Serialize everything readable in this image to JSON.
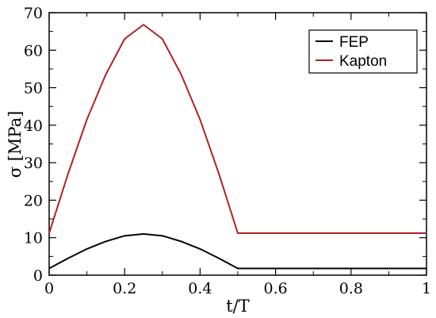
{
  "chart_data": {
    "type": "line",
    "title": "",
    "xlabel": "t/T",
    "ylabel": "σ [MPa]",
    "xlim": [
      0,
      1
    ],
    "ylim": [
      0,
      70
    ],
    "x_ticks": [
      0,
      0.2,
      0.4,
      0.6,
      0.8,
      1
    ],
    "x_tick_labels": [
      "0",
      "0.2",
      "0.4",
      "0.6",
      "0.8",
      "1"
    ],
    "y_ticks": [
      0,
      10,
      20,
      30,
      40,
      50,
      60,
      70
    ],
    "y_tick_labels": [
      "0",
      "10",
      "20",
      "30",
      "40",
      "50",
      "60",
      "70"
    ],
    "grid": false,
    "legend_position": "top-right",
    "series": [
      {
        "name": "FEP",
        "color": "#000000",
        "x": [
          0,
          0.05,
          0.1,
          0.15,
          0.2,
          0.25,
          0.3,
          0.35,
          0.4,
          0.45,
          0.5,
          0.5,
          0.6,
          0.7,
          0.8,
          0.9,
          1.0
        ],
        "values": [
          1.8,
          4.5,
          7.0,
          9.0,
          10.5,
          11.0,
          10.5,
          9.0,
          7.0,
          4.5,
          1.8,
          1.8,
          1.8,
          1.8,
          1.8,
          1.8,
          1.8
        ]
      },
      {
        "name": "Kapton",
        "color": "#b22222",
        "x": [
          0,
          0.05,
          0.1,
          0.15,
          0.2,
          0.25,
          0.3,
          0.35,
          0.4,
          0.45,
          0.5,
          0.5,
          0.6,
          0.7,
          0.8,
          0.9,
          1.0
        ],
        "values": [
          11.2,
          27.0,
          41.5,
          53.5,
          63.0,
          66.8,
          63.0,
          53.5,
          41.5,
          27.0,
          11.2,
          11.2,
          11.2,
          11.2,
          11.2,
          11.2,
          11.2
        ]
      }
    ]
  }
}
